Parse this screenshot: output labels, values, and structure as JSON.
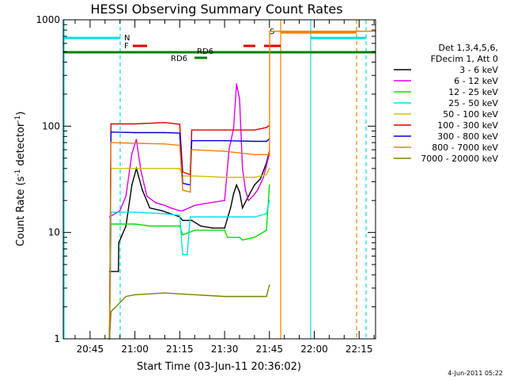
{
  "chart_data": {
    "type": "line",
    "title": "HESSI Observing Summary Count Rates",
    "xlabel": "Start Time (03-Jun-11 20:36:02)",
    "ylabel": "Count Rate (s",
    "ylabel_sup1": "-1",
    "ylabel_mid": " detector",
    "ylabel_sup2": "-1",
    "ylabel_end": ")",
    "yscale": "log",
    "ylim": [
      1,
      1000
    ],
    "xlim_minutes": [
      36.03,
      140.5
    ],
    "y_tick_labels": [
      "1",
      "10",
      "100",
      "1000"
    ],
    "y_tick_values": [
      1,
      10,
      100,
      1000
    ],
    "x_tick_labels": [
      "20:45",
      "21:00",
      "21:15",
      "21:30",
      "21:45",
      "22:00",
      "22:15"
    ],
    "x_tick_minutes": [
      45,
      60,
      75,
      90,
      105,
      120,
      135
    ],
    "legend_title": [
      "Det 1,3,4,5,6,",
      "FDecim 1, Att 0"
    ],
    "legend": [
      {
        "label": "3 - 6 keV",
        "color": "#000000"
      },
      {
        "label": "6 - 12 keV",
        "color": "#e000e0"
      },
      {
        "label": "12 - 25 keV",
        "color": "#00e000"
      },
      {
        "label": "25 - 50 keV",
        "color": "#00e0e0"
      },
      {
        "label": "50 - 100 keV",
        "color": "#d0c000"
      },
      {
        "label": "100 - 300 keV",
        "color": "#e00000"
      },
      {
        "label": "300 - 800 keV",
        "color": "#0000e0"
      },
      {
        "label": "800 - 7000 keV",
        "color": "#f08000"
      },
      {
        "label": "7000 - 20000 keV",
        "color": "#808000"
      }
    ],
    "series": [
      {
        "name": "3 - 6 keV",
        "color": "#000000",
        "x": [
          51.5,
          54.5,
          54.6,
          57,
          59,
          60.5,
          62.5,
          65,
          69,
          72,
          75,
          76,
          79,
          82,
          86,
          90,
          92,
          93,
          94,
          95,
          96,
          98,
          100,
          102,
          104,
          105
        ],
        "y": [
          4.3,
          4.3,
          8,
          11.5,
          28,
          40,
          25,
          17,
          16,
          15,
          14,
          13,
          13,
          11.5,
          11,
          11,
          17,
          23,
          28,
          24,
          17,
          22,
          28,
          32,
          45,
          58
        ]
      },
      {
        "name": "6 - 12 keV",
        "color": "#e000e0",
        "x": [
          51.5,
          55,
          57,
          59,
          60.5,
          62,
          64,
          67,
          70,
          72,
          75,
          76,
          80,
          85,
          90,
          91.5,
          93,
          94,
          95,
          96,
          97,
          98,
          99.5,
          101,
          103,
          105
        ],
        "y": [
          14,
          16,
          22,
          55,
          75,
          38,
          22,
          19,
          18,
          17,
          16,
          16,
          18,
          19,
          20,
          60,
          95,
          250,
          180,
          40,
          25,
          20,
          22,
          25,
          33,
          55
        ]
      },
      {
        "name": "12 - 25 keV",
        "color": "#00e000",
        "x": [
          51.5,
          52,
          55,
          60,
          65,
          70,
          75,
          76,
          80,
          85,
          90,
          91,
          95,
          96,
          100,
          104,
          105
        ],
        "y": [
          1,
          12,
          12,
          12,
          11.5,
          11.5,
          11.5,
          9.5,
          10.5,
          10.5,
          10.5,
          9,
          9,
          8.5,
          9,
          10.5,
          28
        ]
      },
      {
        "name": "25 - 50 keV",
        "color": "#00e0e0",
        "x": [
          51.5,
          52,
          60,
          70,
          75,
          76,
          77.5,
          78.5,
          80,
          90,
          100,
          104,
          105
        ],
        "y": [
          1,
          15.5,
          15.5,
          15,
          14.5,
          6.2,
          6.2,
          14,
          14,
          14,
          14,
          15,
          20
        ]
      },
      {
        "name": "50 - 100 keV",
        "color": "#d0c000",
        "x": [
          51.5,
          52,
          60,
          70,
          75,
          76,
          80,
          90,
          100,
          104,
          105
        ],
        "y": [
          1,
          40,
          40,
          40,
          40,
          34,
          34,
          33,
          33,
          35,
          40
        ]
      },
      {
        "name": "100 - 300 keV",
        "color": "#e00000",
        "x": [
          51.5,
          52,
          60,
          70,
          75,
          76,
          78.5,
          79,
          90,
          100,
          104,
          105
        ],
        "y": [
          1,
          105,
          105,
          108,
          104,
          37,
          35,
          92,
          92,
          92,
          97,
          102
        ]
      },
      {
        "name": "300 - 800 keV",
        "color": "#0000e0",
        "x": [
          51.5,
          52,
          60,
          70,
          75,
          76,
          78.5,
          79,
          90,
          100,
          104,
          105
        ],
        "y": [
          1,
          88,
          87,
          87,
          86,
          29,
          28,
          73,
          73,
          72,
          72,
          76
        ]
      },
      {
        "name": "800 - 7000 keV",
        "color": "#f08000",
        "x": [
          51.5,
          52,
          60,
          70,
          75,
          76,
          78.5,
          79,
          90,
          100,
          104,
          105,
          105.1,
          140.5
        ],
        "y": [
          1,
          70,
          69,
          68,
          66,
          25,
          24,
          60,
          58,
          54,
          54,
          54,
          780,
          780
        ]
      },
      {
        "name": "7000 - 20000 keV",
        "color": "#808000",
        "x": [
          51.5,
          52,
          57,
          60,
          70,
          80,
          90,
          100,
          104,
          105
        ],
        "y": [
          1,
          1.8,
          2.5,
          2.6,
          2.7,
          2.6,
          2.5,
          2.5,
          2.5,
          3.2
        ]
      }
    ],
    "annotations": [
      {
        "text": "N",
        "color": "#00e0e0"
      },
      {
        "text": "F",
        "color": "#e00000"
      },
      {
        "text": "S",
        "color": "#f08000"
      },
      {
        "text": "RD6",
        "color": "#008000"
      },
      {
        "text": "RD6",
        "color": "#008000"
      }
    ],
    "timestamp": "4-Jun-2011 05:22"
  }
}
